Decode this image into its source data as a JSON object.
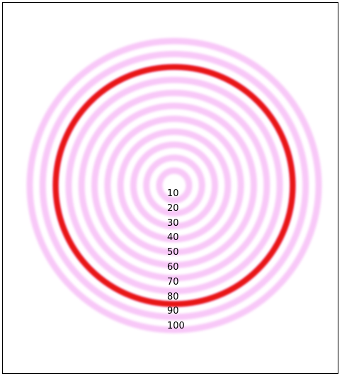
{
  "rings": {
    "labels": [
      "10",
      "20",
      "30",
      "40",
      "50",
      "60",
      "70",
      "80",
      "90",
      "100"
    ],
    "highlighted_label": "90",
    "ring_color": "#f8c8f8",
    "highlight_color": "#e81818",
    "frame_color": "#000000",
    "background": "#ffffff"
  }
}
